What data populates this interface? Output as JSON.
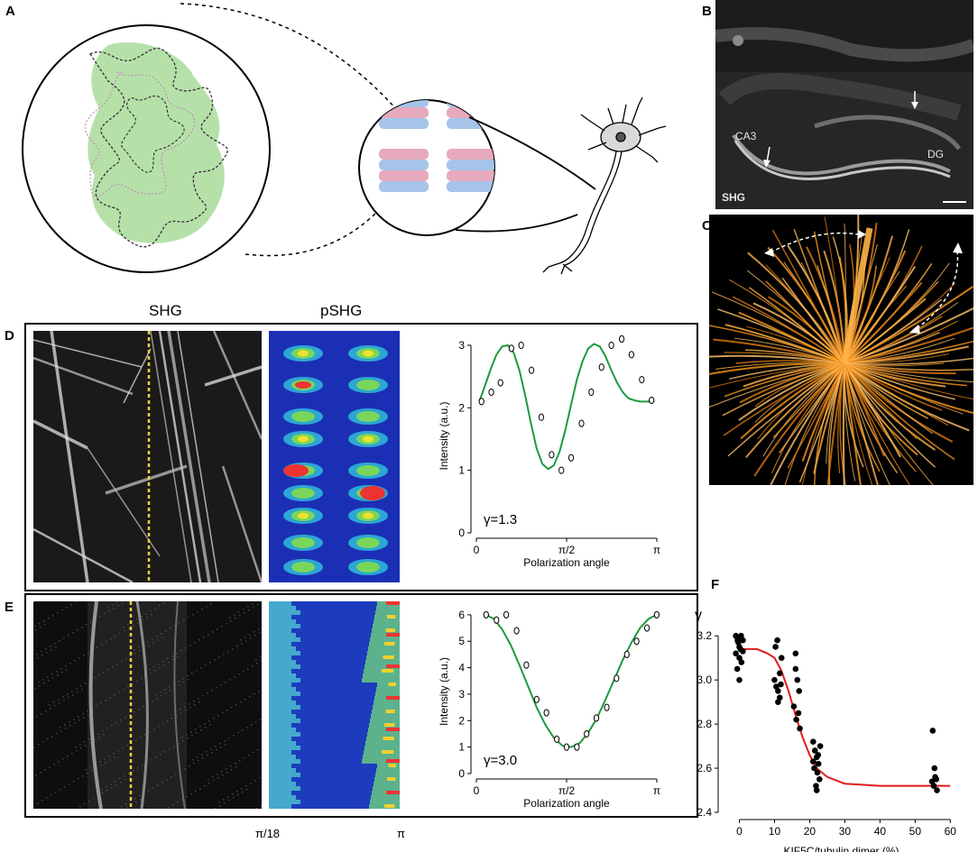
{
  "panels": {
    "a": {
      "letter": "A"
    },
    "b": {
      "letter": "B",
      "labels": {
        "ca3": "CA3",
        "dg": "DG",
        "shg": "SHG"
      }
    },
    "c": {
      "letter": "C"
    },
    "d": {
      "letter": "D",
      "col_shg": "SHG",
      "col_pshg": "pSHG",
      "gamma": "γ=1.3"
    },
    "e": {
      "letter": "E",
      "gamma": "γ=3.0",
      "tick_left": "π/18",
      "tick_right": "π"
    },
    "f": {
      "letter": "F"
    }
  },
  "chart_data": [
    {
      "id": "D",
      "type": "scatter",
      "title": "",
      "xlabel": "Polarization angle",
      "ylabel": "Intensity (a.u.)",
      "xticks": [
        "0",
        "π/2",
        "π"
      ],
      "yticks": [
        0,
        1,
        2,
        3
      ],
      "xlim": [
        0,
        3.1416
      ],
      "ylim": [
        0,
        3.1
      ],
      "annotation": "γ=1.3",
      "series": [
        {
          "kind": "points",
          "x": [
            0.09,
            0.26,
            0.42,
            0.61,
            0.78,
            0.96,
            1.13,
            1.31,
            1.48,
            1.65,
            1.83,
            2.0,
            2.18,
            2.35,
            2.53,
            2.7,
            2.88,
            3.05
          ],
          "y": [
            2.1,
            2.25,
            2.4,
            2.95,
            3.0,
            2.6,
            1.85,
            1.25,
            1.0,
            1.2,
            1.75,
            2.25,
            2.65,
            3.0,
            3.1,
            2.85,
            2.45,
            2.12
          ]
        },
        {
          "kind": "fit",
          "color": "#1e9a3a",
          "x": [
            0.05,
            0.15,
            0.25,
            0.35,
            0.45,
            0.55,
            0.65,
            0.75,
            0.85,
            0.95,
            1.05,
            1.15,
            1.25,
            1.35,
            1.45,
            1.55,
            1.65,
            1.75,
            1.85,
            1.95,
            2.05,
            2.15,
            2.25,
            2.35,
            2.45,
            2.55,
            2.65,
            2.75,
            2.85,
            2.95,
            3.05,
            3.1
          ],
          "y": [
            2.1,
            2.35,
            2.62,
            2.85,
            2.98,
            3.0,
            2.88,
            2.6,
            2.2,
            1.75,
            1.35,
            1.1,
            1.02,
            1.08,
            1.3,
            1.65,
            2.05,
            2.45,
            2.75,
            2.95,
            3.02,
            2.98,
            2.82,
            2.6,
            2.4,
            2.25,
            2.15,
            2.12,
            2.1,
            2.1,
            2.1,
            2.1
          ]
        }
      ]
    },
    {
      "id": "E",
      "type": "scatter",
      "title": "",
      "xlabel": "Polarization angle",
      "ylabel": "Intensity (a.u.)",
      "xticks": [
        "0",
        "π/2",
        "π"
      ],
      "yticks": [
        0,
        1,
        2,
        3,
        4,
        5,
        6
      ],
      "xlim": [
        0,
        3.1416
      ],
      "ylim": [
        0,
        6.2
      ],
      "annotation": "γ=3.0",
      "series": [
        {
          "kind": "points",
          "x": [
            0.17,
            0.35,
            0.52,
            0.7,
            0.87,
            1.05,
            1.22,
            1.4,
            1.57,
            1.75,
            1.92,
            2.09,
            2.27,
            2.44,
            2.62,
            2.79,
            2.97,
            3.14
          ],
          "y": [
            6.0,
            5.8,
            6.0,
            5.4,
            4.1,
            2.8,
            2.3,
            1.3,
            1.0,
            1.0,
            1.5,
            2.1,
            2.5,
            3.6,
            4.5,
            5.0,
            5.5,
            6.0
          ]
        },
        {
          "kind": "fit",
          "color": "#1e9a3a",
          "x": [
            0.17,
            0.3,
            0.45,
            0.6,
            0.75,
            0.9,
            1.05,
            1.2,
            1.35,
            1.5,
            1.65,
            1.8,
            1.95,
            2.1,
            2.25,
            2.4,
            2.55,
            2.7,
            2.85,
            3.0,
            3.14
          ],
          "y": [
            6.0,
            5.85,
            5.45,
            4.85,
            4.1,
            3.3,
            2.5,
            1.85,
            1.35,
            1.05,
            1.0,
            1.15,
            1.55,
            2.1,
            2.8,
            3.55,
            4.3,
            4.95,
            5.5,
            5.85,
            6.0
          ]
        }
      ]
    },
    {
      "id": "F",
      "type": "scatter",
      "title": "",
      "xlabel": "KIF5C/tubulin dimer (%)",
      "ylabel": "γ",
      "xticks": [
        0,
        10,
        20,
        30,
        40,
        50,
        60
      ],
      "yticks": [
        2.4,
        2.6,
        2.8,
        3.0,
        3.2
      ],
      "xlim": [
        -5,
        63
      ],
      "ylim": [
        2.4,
        3.25
      ],
      "series": [
        {
          "kind": "points",
          "x": [
            -1,
            -0.5,
            0,
            0.5,
            1,
            -1,
            0,
            1,
            -0.6,
            0.6,
            0,
            -0.3,
            0.3,
            10,
            10.5,
            11,
            11.5,
            12,
            10.3,
            11,
            11.8,
            10.8,
            11.5,
            16,
            16.5,
            17,
            15.5,
            16.8,
            16.2,
            17.2,
            16,
            21,
            21.5,
            22,
            22.5,
            23,
            21.3,
            22.2,
            22.8,
            21.8,
            22,
            22.4,
            21,
            55,
            55.5,
            56,
            55.3,
            56.2,
            55.7,
            54.8
          ],
          "y": [
            3.2,
            3.18,
            3.15,
            3.2,
            3.18,
            3.12,
            3.1,
            3.13,
            3.05,
            3.08,
            3.0,
            3.17,
            3.14,
            3.0,
            2.97,
            2.95,
            3.03,
            3.1,
            3.15,
            2.9,
            2.98,
            3.18,
            2.92,
            3.12,
            3.0,
            2.95,
            2.88,
            2.85,
            2.82,
            2.78,
            3.05,
            2.72,
            2.68,
            2.65,
            2.62,
            2.7,
            2.6,
            2.58,
            2.55,
            2.52,
            2.5,
            2.66,
            2.63,
            2.77,
            2.6,
            2.55,
            2.52,
            2.5,
            2.56,
            2.54
          ]
        },
        {
          "kind": "fit",
          "color": "#e01b1b",
          "x": [
            0,
            5,
            8,
            10,
            12,
            14,
            16,
            18,
            20,
            22,
            25,
            30,
            40,
            50,
            60
          ],
          "y": [
            3.14,
            3.14,
            3.12,
            3.1,
            3.04,
            2.95,
            2.84,
            2.74,
            2.66,
            2.6,
            2.56,
            2.53,
            2.52,
            2.52,
            2.52
          ]
        }
      ]
    }
  ]
}
